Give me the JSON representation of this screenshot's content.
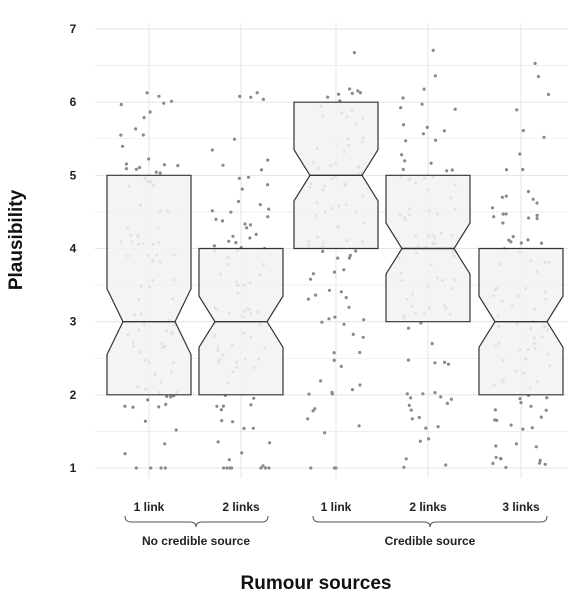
{
  "chart_data": {
    "type": "boxplot",
    "title": "",
    "xlabel": "Rumour sources",
    "ylabel": "Plausibility",
    "ylim": [
      1,
      7
    ],
    "yticks": [
      1,
      2,
      3,
      4,
      5,
      6,
      7
    ],
    "grid": true,
    "notched": true,
    "jitter_points": true,
    "colors": {
      "box_fill": "#f2f2f2",
      "box_stroke": "#333333",
      "points": "#8a8a8a",
      "grid": "#e4e4e4"
    },
    "groups": [
      {
        "label": "No credible source",
        "categories": [
          "1 link",
          "2 links"
        ]
      },
      {
        "label": "Credible source",
        "categories": [
          "1 link",
          "2 links",
          "3 links"
        ]
      }
    ],
    "boxes": [
      {
        "group": "No credible source",
        "category": "1 link",
        "q1": 2,
        "median": 3,
        "q3": 5,
        "notch_low": 2.55,
        "notch_high": 3.45
      },
      {
        "group": "No credible source",
        "category": "2 links",
        "q1": 2,
        "median": 3,
        "q3": 4,
        "notch_low": 2.65,
        "notch_high": 3.35
      },
      {
        "group": "Credible source",
        "category": "1 link",
        "q1": 4,
        "median": 5,
        "q3": 6,
        "notch_low": 4.65,
        "notch_high": 5.35
      },
      {
        "group": "Credible source",
        "category": "2 links",
        "q1": 3,
        "median": 4,
        "q3": 5,
        "notch_low": 3.65,
        "notch_high": 4.35
      },
      {
        "group": "Credible source",
        "category": "3 links",
        "q1": 2,
        "median": 3,
        "q3": 4,
        "notch_low": 2.65,
        "notch_high": 3.35
      }
    ]
  }
}
